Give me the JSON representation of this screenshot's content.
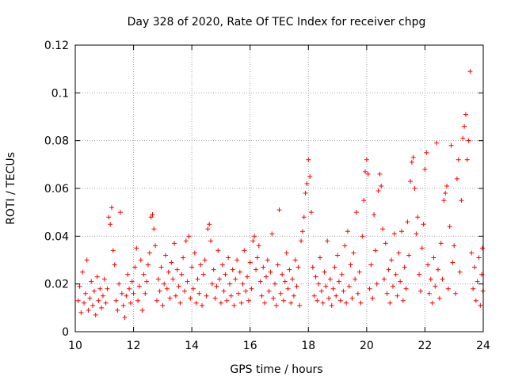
{
  "chart_data": {
    "type": "scatter",
    "title": "Day 328 of 2020, Rate Of TEC Index for receiver chpg",
    "xlabel": "GPS time / hours",
    "ylabel": "ROTI / TECUs",
    "xlim": [
      10,
      24
    ],
    "ylim": [
      0,
      0.12
    ],
    "xticks": [
      "10",
      "12",
      "14",
      "16",
      "18",
      "20",
      "22",
      "24"
    ],
    "yticks": [
      "0",
      "0.02",
      "0.04",
      "0.06",
      "0.08",
      "0.1",
      "0.12"
    ],
    "grid": true,
    "marker": "plus",
    "color": "#ff0000",
    "series": [
      {
        "name": "ROTI",
        "points": [
          [
            10.1,
            0.013
          ],
          [
            10.15,
            0.019
          ],
          [
            10.2,
            0.008
          ],
          [
            10.25,
            0.025
          ],
          [
            10.3,
            0.012
          ],
          [
            10.35,
            0.016
          ],
          [
            10.4,
            0.03
          ],
          [
            10.45,
            0.009
          ],
          [
            10.5,
            0.014
          ],
          [
            10.55,
            0.021
          ],
          [
            10.6,
            0.011
          ],
          [
            10.65,
            0.017
          ],
          [
            10.7,
            0.007
          ],
          [
            10.75,
            0.023
          ],
          [
            10.8,
            0.013
          ],
          [
            10.85,
            0.018
          ],
          [
            10.9,
            0.01
          ],
          [
            10.95,
            0.015
          ],
          [
            11.0,
            0.022
          ],
          [
            11.05,
            0.012
          ],
          [
            11.1,
            0.018
          ],
          [
            11.15,
            0.048
          ],
          [
            11.2,
            0.045
          ],
          [
            11.25,
            0.052
          ],
          [
            11.3,
            0.034
          ],
          [
            11.35,
            0.028
          ],
          [
            11.4,
            0.013
          ],
          [
            11.45,
            0.009
          ],
          [
            11.5,
            0.02
          ],
          [
            11.55,
            0.05
          ],
          [
            11.6,
            0.016
          ],
          [
            11.65,
            0.011
          ],
          [
            11.7,
            0.006
          ],
          [
            11.75,
            0.015
          ],
          [
            11.8,
            0.024
          ],
          [
            11.85,
            0.018
          ],
          [
            11.9,
            0.012
          ],
          [
            11.95,
            0.021
          ],
          [
            12.0,
            0.016
          ],
          [
            12.05,
            0.027
          ],
          [
            12.1,
            0.035
          ],
          [
            12.15,
            0.013
          ],
          [
            12.2,
            0.019
          ],
          [
            12.25,
            0.03
          ],
          [
            12.3,
            0.009
          ],
          [
            12.35,
            0.024
          ],
          [
            12.4,
            0.016
          ],
          [
            12.45,
            0.021
          ],
          [
            12.5,
            0.028
          ],
          [
            12.55,
            0.033
          ],
          [
            12.6,
            0.048
          ],
          [
            12.65,
            0.049
          ],
          [
            12.7,
            0.043
          ],
          [
            12.75,
            0.036
          ],
          [
            12.8,
            0.013
          ],
          [
            12.85,
            0.022
          ],
          [
            12.9,
            0.017
          ],
          [
            12.95,
            0.027
          ],
          [
            13.0,
            0.011
          ],
          [
            13.05,
            0.02
          ],
          [
            13.1,
            0.032
          ],
          [
            13.15,
            0.018
          ],
          [
            13.2,
            0.025
          ],
          [
            13.25,
            0.014
          ],
          [
            13.3,
            0.029
          ],
          [
            13.35,
            0.022
          ],
          [
            13.4,
            0.037
          ],
          [
            13.45,
            0.015
          ],
          [
            13.5,
            0.026
          ],
          [
            13.55,
            0.019
          ],
          [
            13.6,
            0.012
          ],
          [
            13.65,
            0.024
          ],
          [
            13.7,
            0.031
          ],
          [
            13.75,
            0.017
          ],
          [
            13.8,
            0.038
          ],
          [
            13.85,
            0.021
          ],
          [
            13.9,
            0.04
          ],
          [
            13.95,
            0.014
          ],
          [
            14.0,
            0.027
          ],
          [
            14.05,
            0.018
          ],
          [
            14.1,
            0.033
          ],
          [
            14.15,
            0.012
          ],
          [
            14.2,
            0.022
          ],
          [
            14.25,
            0.016
          ],
          [
            14.3,
            0.028
          ],
          [
            14.35,
            0.011
          ],
          [
            14.4,
            0.024
          ],
          [
            14.45,
            0.03
          ],
          [
            14.5,
            0.015
          ],
          [
            14.55,
            0.043
          ],
          [
            14.6,
            0.045
          ],
          [
            14.65,
            0.038
          ],
          [
            14.7,
            0.02
          ],
          [
            14.75,
            0.026
          ],
          [
            14.8,
            0.014
          ],
          [
            14.85,
            0.019
          ],
          [
            14.9,
            0.034
          ],
          [
            14.95,
            0.022
          ],
          [
            15.0,
            0.012
          ],
          [
            15.05,
            0.028
          ],
          [
            15.1,
            0.017
          ],
          [
            15.15,
            0.024
          ],
          [
            15.2,
            0.013
          ],
          [
            15.25,
            0.031
          ],
          [
            15.3,
            0.02
          ],
          [
            15.35,
            0.015
          ],
          [
            15.4,
            0.026
          ],
          [
            15.45,
            0.011
          ],
          [
            15.5,
            0.022
          ],
          [
            15.55,
            0.03
          ],
          [
            15.6,
            0.016
          ],
          [
            15.65,
            0.025
          ],
          [
            15.7,
            0.012
          ],
          [
            15.75,
            0.02
          ],
          [
            15.8,
            0.034
          ],
          [
            15.85,
            0.017
          ],
          [
            15.9,
            0.023
          ],
          [
            15.95,
            0.013
          ],
          [
            16.0,
            0.029
          ],
          [
            16.05,
            0.018
          ],
          [
            16.1,
            0.038
          ],
          [
            16.15,
            0.04
          ],
          [
            16.2,
            0.026
          ],
          [
            16.25,
            0.031
          ],
          [
            16.3,
            0.036
          ],
          [
            16.35,
            0.021
          ],
          [
            16.4,
            0.015
          ],
          [
            16.45,
            0.027
          ],
          [
            16.5,
            0.012
          ],
          [
            16.55,
            0.023
          ],
          [
            16.6,
            0.03
          ],
          [
            16.65,
            0.017
          ],
          [
            16.7,
            0.025
          ],
          [
            16.75,
            0.041
          ],
          [
            16.8,
            0.014
          ],
          [
            16.85,
            0.02
          ],
          [
            16.9,
            0.011
          ],
          [
            16.95,
            0.028
          ],
          [
            17.0,
            0.051
          ],
          [
            17.05,
            0.016
          ],
          [
            17.1,
            0.024
          ],
          [
            17.15,
            0.013
          ],
          [
            17.2,
            0.021
          ],
          [
            17.25,
            0.033
          ],
          [
            17.3,
            0.018
          ],
          [
            17.35,
            0.026
          ],
          [
            17.4,
            0.012
          ],
          [
            17.45,
            0.022
          ],
          [
            17.5,
            0.015
          ],
          [
            17.55,
            0.03
          ],
          [
            17.6,
            0.019
          ],
          [
            17.65,
            0.027
          ],
          [
            17.7,
            0.011
          ],
          [
            17.75,
            0.038
          ],
          [
            17.8,
            0.042
          ],
          [
            17.85,
            0.048
          ],
          [
            17.9,
            0.058
          ],
          [
            17.95,
            0.062
          ],
          [
            18.0,
            0.072
          ],
          [
            18.05,
            0.065
          ],
          [
            18.1,
            0.05
          ],
          [
            18.15,
            0.027
          ],
          [
            18.2,
            0.015
          ],
          [
            18.25,
            0.023
          ],
          [
            18.3,
            0.013
          ],
          [
            18.35,
            0.02
          ],
          [
            18.4,
            0.031
          ],
          [
            18.45,
            0.017
          ],
          [
            18.5,
            0.012
          ],
          [
            18.55,
            0.025
          ],
          [
            18.6,
            0.019
          ],
          [
            18.65,
            0.038
          ],
          [
            18.7,
            0.014
          ],
          [
            18.75,
            0.022
          ],
          [
            18.8,
            0.011
          ],
          [
            18.85,
            0.018
          ],
          [
            18.9,
            0.027
          ],
          [
            18.95,
            0.015
          ],
          [
            19.0,
            0.032
          ],
          [
            19.05,
            0.021
          ],
          [
            19.1,
            0.013
          ],
          [
            19.15,
            0.024
          ],
          [
            19.2,
            0.017
          ],
          [
            19.25,
            0.036
          ],
          [
            19.3,
            0.012
          ],
          [
            19.35,
            0.042
          ],
          [
            19.4,
            0.019
          ],
          [
            19.45,
            0.028
          ],
          [
            19.5,
            0.014
          ],
          [
            19.55,
            0.033
          ],
          [
            19.6,
            0.022
          ],
          [
            19.65,
            0.05
          ],
          [
            19.7,
            0.016
          ],
          [
            19.75,
            0.025
          ],
          [
            19.8,
            0.012
          ],
          [
            19.85,
            0.04
          ],
          [
            19.9,
            0.055
          ],
          [
            19.95,
            0.067
          ],
          [
            20.0,
            0.072
          ],
          [
            20.05,
            0.066
          ],
          [
            20.1,
            0.018
          ],
          [
            20.15,
            0.028
          ],
          [
            20.2,
            0.014
          ],
          [
            20.25,
            0.049
          ],
          [
            20.3,
            0.034
          ],
          [
            20.35,
            0.02
          ],
          [
            20.4,
            0.059
          ],
          [
            20.45,
            0.066
          ],
          [
            20.5,
            0.061
          ],
          [
            20.55,
            0.043
          ],
          [
            20.6,
            0.022
          ],
          [
            20.65,
            0.037
          ],
          [
            20.7,
            0.016
          ],
          [
            20.75,
            0.026
          ],
          [
            20.8,
            0.012
          ],
          [
            20.85,
            0.03
          ],
          [
            20.9,
            0.019
          ],
          [
            20.95,
            0.041
          ],
          [
            21.0,
            0.024
          ],
          [
            21.05,
            0.015
          ],
          [
            21.1,
            0.033
          ],
          [
            21.15,
            0.021
          ],
          [
            21.2,
            0.042
          ],
          [
            21.25,
            0.013
          ],
          [
            21.3,
            0.027
          ],
          [
            21.35,
            0.018
          ],
          [
            21.4,
            0.046
          ],
          [
            21.45,
            0.032
          ],
          [
            21.5,
            0.063
          ],
          [
            21.55,
            0.071
          ],
          [
            21.6,
            0.073
          ],
          [
            21.65,
            0.06
          ],
          [
            21.7,
            0.041
          ],
          [
            21.75,
            0.048
          ],
          [
            21.8,
            0.024
          ],
          [
            21.85,
            0.017
          ],
          [
            21.9,
            0.035
          ],
          [
            21.95,
            0.045
          ],
          [
            22.0,
            0.068
          ],
          [
            22.05,
            0.075
          ],
          [
            22.1,
            0.028
          ],
          [
            22.15,
            0.016
          ],
          [
            22.2,
            0.022
          ],
          [
            22.25,
            0.012
          ],
          [
            22.3,
            0.031
          ],
          [
            22.35,
            0.019
          ],
          [
            22.4,
            0.079
          ],
          [
            22.45,
            0.026
          ],
          [
            22.5,
            0.014
          ],
          [
            22.55,
            0.037
          ],
          [
            22.6,
            0.022
          ],
          [
            22.65,
            0.055
          ],
          [
            22.7,
            0.058
          ],
          [
            22.75,
            0.061
          ],
          [
            22.8,
            0.018
          ],
          [
            22.85,
            0.044
          ],
          [
            22.9,
            0.078
          ],
          [
            22.95,
            0.029
          ],
          [
            23.0,
            0.036
          ],
          [
            23.05,
            0.016
          ],
          [
            23.1,
            0.064
          ],
          [
            23.15,
            0.072
          ],
          [
            23.2,
            0.025
          ],
          [
            23.25,
            0.055
          ],
          [
            23.3,
            0.081
          ],
          [
            23.35,
            0.086
          ],
          [
            23.4,
            0.091
          ],
          [
            23.45,
            0.072
          ],
          [
            23.5,
            0.08
          ],
          [
            23.55,
            0.109
          ],
          [
            23.6,
            0.033
          ],
          [
            23.65,
            0.018
          ],
          [
            23.7,
            0.027
          ],
          [
            23.75,
            0.013
          ],
          [
            23.8,
            0.021
          ],
          [
            23.85,
            0.031
          ],
          [
            23.9,
            0.011
          ],
          [
            23.95,
            0.024
          ],
          [
            23.97,
            0.035
          ],
          [
            23.99,
            0.017
          ]
        ]
      }
    ]
  }
}
